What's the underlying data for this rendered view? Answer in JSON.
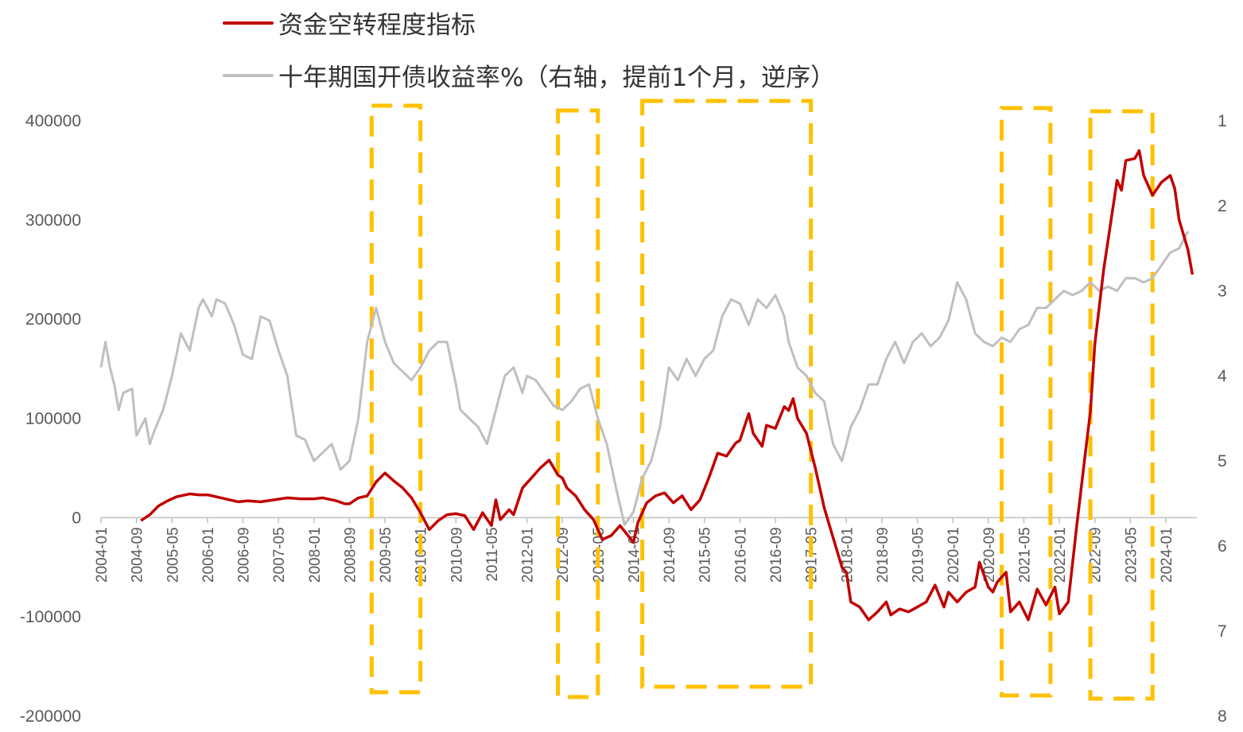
{
  "legend": {
    "series1": "资金空转程度指标",
    "series2": "十年期国开债收益率%（右轴，提前1个月，逆序）"
  },
  "colors": {
    "series1": "#C00000",
    "series2": "#BFBFBF",
    "highlight": "#FFC000",
    "axis": "#BFBFBF"
  },
  "chart_data": {
    "type": "line",
    "x_labels": [
      "2004-01",
      "2004-09",
      "2005-05",
      "2006-01",
      "2006-09",
      "2007-05",
      "2008-01",
      "2008-09",
      "2009-05",
      "2010-01",
      "2010-09",
      "2011-05",
      "2012-01",
      "2012-09",
      "2013-05",
      "2014-01",
      "2014-09",
      "2015-05",
      "2016-01",
      "2016-09",
      "2017-05",
      "2018-01",
      "2018-09",
      "2019-05",
      "2020-01",
      "2020-09",
      "2021-05",
      "2022-01",
      "2022-09",
      "2023-05",
      "2024-01"
    ],
    "y_left": {
      "ticks": [
        400000,
        300000,
        200000,
        100000,
        0,
        -100000,
        -200000
      ],
      "range": [
        -200000,
        400000
      ]
    },
    "y_right": {
      "ticks": [
        1,
        2,
        3,
        4,
        5,
        6,
        7,
        8
      ],
      "range": [
        1,
        8
      ],
      "inverted": true
    },
    "highlight_boxes": [
      {
        "from": "2009-02",
        "to": "2010-01"
      },
      {
        "from": "2012-08",
        "to": "2013-05"
      },
      {
        "from": "2014-03",
        "to": "2017-05"
      },
      {
        "from": "2020-12",
        "to": "2021-11"
      },
      {
        "from": "2022-08",
        "to": "2023-10"
      }
    ],
    "series": [
      {
        "name": "资金空转程度指标",
        "axis": "left",
        "points": [
          [
            "2004-10",
            -3000
          ],
          [
            "2004-12",
            3000
          ],
          [
            "2005-02",
            12000
          ],
          [
            "2005-04",
            17000
          ],
          [
            "2005-06",
            21000
          ],
          [
            "2005-09",
            24000
          ],
          [
            "2005-11",
            23000
          ],
          [
            "2006-01",
            23000
          ],
          [
            "2006-03",
            21000
          ],
          [
            "2006-06",
            18000
          ],
          [
            "2006-08",
            16000
          ],
          [
            "2006-10",
            17000
          ],
          [
            "2007-01",
            16000
          ],
          [
            "2007-04",
            18000
          ],
          [
            "2007-07",
            20000
          ],
          [
            "2007-10",
            19000
          ],
          [
            "2008-01",
            19000
          ],
          [
            "2008-03",
            20000
          ],
          [
            "2008-06",
            17000
          ],
          [
            "2008-08",
            14000
          ],
          [
            "2008-09",
            14000
          ],
          [
            "2008-11",
            20000
          ],
          [
            "2009-01",
            22000
          ],
          [
            "2009-03",
            36000
          ],
          [
            "2009-05",
            45000
          ],
          [
            "2009-07",
            37000
          ],
          [
            "2009-09",
            30000
          ],
          [
            "2009-11",
            20000
          ],
          [
            "2010-01",
            5000
          ],
          [
            "2010-03",
            -12000
          ],
          [
            "2010-05",
            -3000
          ],
          [
            "2010-07",
            3000
          ],
          [
            "2010-09",
            4000
          ],
          [
            "2010-11",
            2000
          ],
          [
            "2011-01",
            -12000
          ],
          [
            "2011-03",
            5000
          ],
          [
            "2011-05",
            -8000
          ],
          [
            "2011-06",
            18000
          ],
          [
            "2011-07",
            -2000
          ],
          [
            "2011-09",
            8000
          ],
          [
            "2011-10",
            3000
          ],
          [
            "2011-12",
            30000
          ],
          [
            "2012-02",
            40000
          ],
          [
            "2012-04",
            50000
          ],
          [
            "2012-06",
            58000
          ],
          [
            "2012-08",
            43000
          ],
          [
            "2012-09",
            40000
          ],
          [
            "2012-10",
            30000
          ],
          [
            "2012-12",
            22000
          ],
          [
            "2013-02",
            8000
          ],
          [
            "2013-04",
            -2000
          ],
          [
            "2013-06",
            -22000
          ],
          [
            "2013-08",
            -18000
          ],
          [
            "2013-10",
            -8000
          ],
          [
            "2014-01",
            -25000
          ],
          [
            "2014-02",
            -5000
          ],
          [
            "2014-04",
            15000
          ],
          [
            "2014-06",
            22000
          ],
          [
            "2014-08",
            25000
          ],
          [
            "2014-10",
            15000
          ],
          [
            "2014-12",
            22000
          ],
          [
            "2015-02",
            8000
          ],
          [
            "2015-04",
            18000
          ],
          [
            "2015-06",
            40000
          ],
          [
            "2015-08",
            65000
          ],
          [
            "2015-10",
            62000
          ],
          [
            "2015-12",
            75000
          ],
          [
            "2016-01",
            78000
          ],
          [
            "2016-03",
            105000
          ],
          [
            "2016-04",
            85000
          ],
          [
            "2016-06",
            72000
          ],
          [
            "2016-07",
            93000
          ],
          [
            "2016-09",
            90000
          ],
          [
            "2016-11",
            112000
          ],
          [
            "2016-12",
            108000
          ],
          [
            "2017-01",
            120000
          ],
          [
            "2017-02",
            100000
          ],
          [
            "2017-04",
            85000
          ],
          [
            "2017-06",
            50000
          ],
          [
            "2017-08",
            10000
          ],
          [
            "2017-10",
            -20000
          ],
          [
            "2017-12",
            -50000
          ],
          [
            "2018-01",
            -55000
          ],
          [
            "2018-02",
            -85000
          ],
          [
            "2018-04",
            -90000
          ],
          [
            "2018-06",
            -103000
          ],
          [
            "2018-08",
            -95000
          ],
          [
            "2018-10",
            -85000
          ],
          [
            "2018-11",
            -98000
          ],
          [
            "2019-01",
            -92000
          ],
          [
            "2019-03",
            -95000
          ],
          [
            "2019-05",
            -90000
          ],
          [
            "2019-07",
            -85000
          ],
          [
            "2019-09",
            -68000
          ],
          [
            "2019-11",
            -90000
          ],
          [
            "2019-12",
            -75000
          ],
          [
            "2020-02",
            -85000
          ],
          [
            "2020-04",
            -75000
          ],
          [
            "2020-06",
            -70000
          ],
          [
            "2020-07",
            -45000
          ],
          [
            "2020-09",
            -70000
          ],
          [
            "2020-10",
            -75000
          ],
          [
            "2020-11",
            -65000
          ],
          [
            "2020-12",
            -60000
          ],
          [
            "2021-01",
            -55000
          ],
          [
            "2021-02",
            -95000
          ],
          [
            "2021-04",
            -85000
          ],
          [
            "2021-06",
            -103000
          ],
          [
            "2021-08",
            -72000
          ],
          [
            "2021-10",
            -88000
          ],
          [
            "2021-12",
            -70000
          ],
          [
            "2022-01",
            -97000
          ],
          [
            "2022-03",
            -85000
          ],
          [
            "2022-05",
            -5000
          ],
          [
            "2022-07",
            70000
          ],
          [
            "2022-08",
            107000
          ],
          [
            "2022-09",
            175000
          ],
          [
            "2022-11",
            250000
          ],
          [
            "2023-01",
            310000
          ],
          [
            "2023-02",
            340000
          ],
          [
            "2023-03",
            330000
          ],
          [
            "2023-04",
            360000
          ],
          [
            "2023-06",
            362000
          ],
          [
            "2023-07",
            370000
          ],
          [
            "2023-08",
            345000
          ],
          [
            "2023-10",
            325000
          ],
          [
            "2023-12",
            338000
          ],
          [
            "2024-02",
            345000
          ],
          [
            "2024-03",
            332000
          ],
          [
            "2024-04",
            300000
          ],
          [
            "2024-06",
            270000
          ],
          [
            "2024-07",
            245000
          ]
        ]
      },
      {
        "name": "十年期国开债收益率%（右轴，提前1个月，逆序）",
        "axis": "right",
        "points": [
          [
            "2004-01",
            3.9
          ],
          [
            "2004-02",
            3.6
          ],
          [
            "2004-03",
            3.9
          ],
          [
            "2004-04",
            4.1
          ],
          [
            "2004-05",
            4.4
          ],
          [
            "2004-06",
            4.2
          ],
          [
            "2004-08",
            4.15
          ],
          [
            "2004-09",
            4.7
          ],
          [
            "2004-11",
            4.5
          ],
          [
            "2004-12",
            4.8
          ],
          [
            "2005-01",
            4.65
          ],
          [
            "2005-03",
            4.4
          ],
          [
            "2005-05",
            4.0
          ],
          [
            "2005-07",
            3.5
          ],
          [
            "2005-09",
            3.7
          ],
          [
            "2005-11",
            3.2
          ],
          [
            "2005-12",
            3.1
          ],
          [
            "2006-02",
            3.3
          ],
          [
            "2006-03",
            3.1
          ],
          [
            "2006-05",
            3.15
          ],
          [
            "2006-07",
            3.4
          ],
          [
            "2006-09",
            3.75
          ],
          [
            "2006-11",
            3.8
          ],
          [
            "2007-01",
            3.3
          ],
          [
            "2007-03",
            3.35
          ],
          [
            "2007-05",
            3.7
          ],
          [
            "2007-07",
            4.0
          ],
          [
            "2007-09",
            4.7
          ],
          [
            "2007-11",
            4.75
          ],
          [
            "2008-01",
            5.0
          ],
          [
            "2008-03",
            4.9
          ],
          [
            "2008-05",
            4.8
          ],
          [
            "2008-07",
            5.1
          ],
          [
            "2008-09",
            5.0
          ],
          [
            "2008-11",
            4.5
          ],
          [
            "2009-01",
            3.6
          ],
          [
            "2009-03",
            3.2
          ],
          [
            "2009-05",
            3.6
          ],
          [
            "2009-07",
            3.85
          ],
          [
            "2009-09",
            3.95
          ],
          [
            "2009-11",
            4.05
          ],
          [
            "2010-01",
            3.9
          ],
          [
            "2010-03",
            3.7
          ],
          [
            "2010-05",
            3.6
          ],
          [
            "2010-07",
            3.6
          ],
          [
            "2010-09",
            4.1
          ],
          [
            "2010-10",
            4.4
          ],
          [
            "2010-12",
            4.5
          ],
          [
            "2011-02",
            4.6
          ],
          [
            "2011-04",
            4.8
          ],
          [
            "2011-06",
            4.4
          ],
          [
            "2011-08",
            4.0
          ],
          [
            "2011-10",
            3.9
          ],
          [
            "2011-12",
            4.2
          ],
          [
            "2012-01",
            4.0
          ],
          [
            "2012-03",
            4.05
          ],
          [
            "2012-05",
            4.2
          ],
          [
            "2012-07",
            4.35
          ],
          [
            "2012-09",
            4.4
          ],
          [
            "2012-11",
            4.3
          ],
          [
            "2013-01",
            4.15
          ],
          [
            "2013-03",
            4.1
          ],
          [
            "2013-05",
            4.5
          ],
          [
            "2013-07",
            4.8
          ],
          [
            "2013-09",
            5.3
          ],
          [
            "2013-11",
            5.75
          ],
          [
            "2014-01",
            5.6
          ],
          [
            "2014-03",
            5.2
          ],
          [
            "2014-05",
            5.0
          ],
          [
            "2014-07",
            4.6
          ],
          [
            "2014-09",
            3.9
          ],
          [
            "2014-11",
            4.05
          ],
          [
            "2015-01",
            3.8
          ],
          [
            "2015-03",
            4.0
          ],
          [
            "2015-05",
            3.8
          ],
          [
            "2015-07",
            3.7
          ],
          [
            "2015-09",
            3.3
          ],
          [
            "2015-11",
            3.1
          ],
          [
            "2016-01",
            3.15
          ],
          [
            "2016-03",
            3.4
          ],
          [
            "2016-05",
            3.1
          ],
          [
            "2016-07",
            3.2
          ],
          [
            "2016-09",
            3.05
          ],
          [
            "2016-11",
            3.3
          ],
          [
            "2016-12",
            3.6
          ],
          [
            "2017-02",
            3.9
          ],
          [
            "2017-04",
            4.0
          ],
          [
            "2017-06",
            4.2
          ],
          [
            "2017-08",
            4.3
          ],
          [
            "2017-10",
            4.8
          ],
          [
            "2017-12",
            5.0
          ],
          [
            "2018-02",
            4.6
          ],
          [
            "2018-04",
            4.4
          ],
          [
            "2018-06",
            4.1
          ],
          [
            "2018-08",
            4.1
          ],
          [
            "2018-10",
            3.8
          ],
          [
            "2018-12",
            3.6
          ],
          [
            "2019-02",
            3.85
          ],
          [
            "2019-04",
            3.6
          ],
          [
            "2019-06",
            3.5
          ],
          [
            "2019-08",
            3.65
          ],
          [
            "2019-10",
            3.55
          ],
          [
            "2019-12",
            3.35
          ],
          [
            "2020-02",
            2.9
          ],
          [
            "2020-04",
            3.1
          ],
          [
            "2020-06",
            3.5
          ],
          [
            "2020-08",
            3.6
          ],
          [
            "2020-10",
            3.65
          ],
          [
            "2020-12",
            3.55
          ],
          [
            "2021-02",
            3.6
          ],
          [
            "2021-04",
            3.45
          ],
          [
            "2021-06",
            3.4
          ],
          [
            "2021-08",
            3.2
          ],
          [
            "2021-10",
            3.2
          ],
          [
            "2021-12",
            3.1
          ],
          [
            "2022-02",
            3.0
          ],
          [
            "2022-04",
            3.05
          ],
          [
            "2022-06",
            3.0
          ],
          [
            "2022-08",
            2.9
          ],
          [
            "2022-10",
            3.0
          ],
          [
            "2022-12",
            2.95
          ],
          [
            "2023-02",
            3.0
          ],
          [
            "2023-04",
            2.85
          ],
          [
            "2023-06",
            2.85
          ],
          [
            "2023-08",
            2.9
          ],
          [
            "2023-10",
            2.85
          ],
          [
            "2023-12",
            2.7
          ],
          [
            "2024-02",
            2.55
          ],
          [
            "2024-04",
            2.5
          ],
          [
            "2024-06",
            2.3
          ]
        ]
      }
    ]
  }
}
